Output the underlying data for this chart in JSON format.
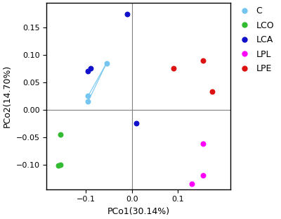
{
  "xlabel": "PCo1(30.14%)",
  "ylabel": "PCo2(14.70%)",
  "xlim": [
    -0.185,
    0.215
  ],
  "ylim": [
    -0.145,
    0.195
  ],
  "xticks": [
    -0.1,
    0.0,
    0.1
  ],
  "yticks": [
    -0.1,
    -0.05,
    0.0,
    0.05,
    0.1,
    0.15
  ],
  "groups": {
    "C": {
      "color": "#74C6F0",
      "points": [
        [
          -0.095,
          0.025
        ],
        [
          -0.095,
          0.015
        ],
        [
          -0.055,
          0.085
        ]
      ]
    },
    "LCO": {
      "color": "#33BB33",
      "points": [
        [
          -0.155,
          -0.045
        ],
        [
          -0.155,
          -0.1
        ],
        [
          -0.16,
          -0.102
        ]
      ]
    },
    "LCA": {
      "color": "#1111CC",
      "points": [
        [
          -0.09,
          0.075
        ],
        [
          -0.095,
          0.07
        ],
        [
          -0.01,
          0.175
        ],
        [
          0.01,
          -0.025
        ]
      ]
    },
    "LPL": {
      "color": "#FF00FF",
      "points": [
        [
          0.155,
          -0.062
        ],
        [
          0.155,
          -0.12
        ],
        [
          0.13,
          -0.135
        ]
      ]
    },
    "LPE": {
      "color": "#DD1111",
      "points": [
        [
          0.09,
          0.075
        ],
        [
          0.155,
          0.09
        ],
        [
          0.175,
          0.033
        ]
      ]
    }
  },
  "figsize": [
    4.0,
    3.11
  ],
  "dpi": 100,
  "legend_groups": [
    "C",
    "LCO",
    "LCA",
    "LPL",
    "LPE"
  ]
}
